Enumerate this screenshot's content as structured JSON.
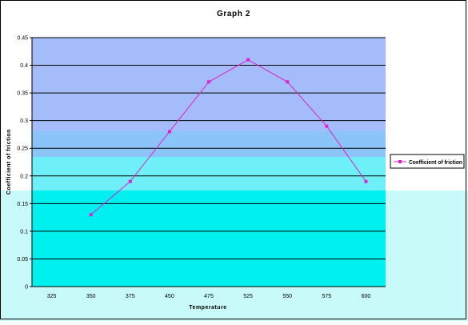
{
  "colors": {
    "series": "#e020d0",
    "grid": "#000000",
    "band_top": "#a4bcfa",
    "band_mid": "#8ac4f8",
    "band_bottom": "#6ff0f8",
    "plot_fill": "#00f0f0",
    "chart_bg": "#c8fafa"
  },
  "chart_data": {
    "type": "line",
    "title": "Graph 2",
    "xlabel": "Temperature",
    "ylabel": "Coefficient of friction",
    "categories": [
      "325",
      "350",
      "375",
      "450",
      "475",
      "525",
      "550",
      "575",
      "600"
    ],
    "series": [
      {
        "name": "Coefficient of friction",
        "values": [
          null,
          0.13,
          0.19,
          0.28,
          0.37,
          0.41,
          0.37,
          0.29,
          0.19
        ]
      }
    ],
    "yticks": [
      "0",
      "0.05",
      "0.1",
      "0.15",
      "0.2",
      "0.25",
      "0.3",
      "0.35",
      "0.4",
      "0.45"
    ],
    "ylim": [
      0,
      0.45
    ],
    "grid": true,
    "legend": "right"
  }
}
